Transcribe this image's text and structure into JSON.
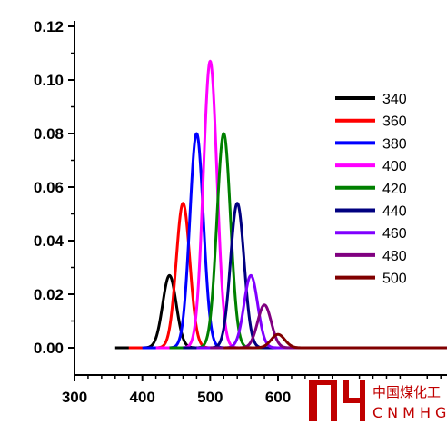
{
  "chart_data": {
    "type": "line",
    "title": "",
    "xlabel": "",
    "ylabel": "",
    "xlim": [
      300,
      650
    ],
    "ylim": [
      0,
      0.12
    ],
    "x_ticks": [
      "300",
      "400",
      "500",
      "600"
    ],
    "y_ticks": [
      "0.00",
      "0.02",
      "0.04",
      "0.06",
      "0.08",
      "0.10",
      "0.12"
    ],
    "legend_position": "right",
    "series": [
      {
        "name": "340",
        "color": "#000000",
        "peak_x": 440,
        "peak_y": 0.027,
        "sigma": 10,
        "x_start": 360
      },
      {
        "name": "360",
        "color": "#ff0000",
        "peak_x": 460,
        "peak_y": 0.054,
        "sigma": 10,
        "x_start": 380
      },
      {
        "name": "380",
        "color": "#0000ff",
        "peak_x": 480,
        "peak_y": 0.08,
        "sigma": 10,
        "x_start": 400
      },
      {
        "name": "400",
        "color": "#ff00ff",
        "peak_x": 500,
        "peak_y": 0.107,
        "sigma": 10,
        "x_start": 420
      },
      {
        "name": "420",
        "color": "#008000",
        "peak_x": 520,
        "peak_y": 0.08,
        "sigma": 10,
        "x_start": 440
      },
      {
        "name": "440",
        "color": "#000080",
        "peak_x": 540,
        "peak_y": 0.054,
        "sigma": 10,
        "x_start": 460
      },
      {
        "name": "460",
        "color": "#8000ff",
        "peak_x": 560,
        "peak_y": 0.027,
        "sigma": 10,
        "x_start": 480
      },
      {
        "name": "480",
        "color": "#800080",
        "peak_x": 580,
        "peak_y": 0.016,
        "sigma": 10,
        "x_start": 500
      },
      {
        "name": "500",
        "color": "#800000",
        "peak_x": 600,
        "peak_y": 0.005,
        "sigma": 10,
        "x_start": 520
      }
    ]
  },
  "watermark": {
    "logo_text": "MH",
    "chinese": "中国煤化工",
    "latin": "CNMHG",
    "color": "#c00000"
  }
}
